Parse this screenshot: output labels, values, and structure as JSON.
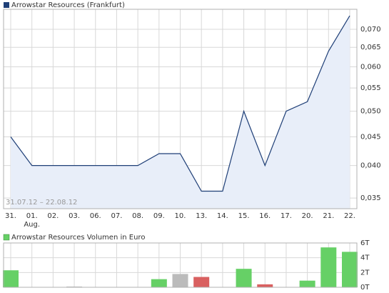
{
  "chart_data": [
    {
      "type": "line",
      "title": "Arrowstar Resources (Frankfurt)",
      "annotation": "31.07.12 – 22.08.12",
      "categories": [
        "31.",
        "01.",
        "02.",
        "03.",
        "06.",
        "07.",
        "08.",
        "09.",
        "10.",
        "13.",
        "14.",
        "15.",
        "16.",
        "17.",
        "20.",
        "21.",
        "22."
      ],
      "sublabels": [
        null,
        "Aug.",
        null,
        null,
        null,
        null,
        null,
        null,
        null,
        null,
        null,
        null,
        null,
        null,
        null,
        null,
        null
      ],
      "values": [
        0.045,
        0.04,
        0.04,
        0.04,
        0.04,
        0.04,
        0.04,
        0.042,
        0.042,
        0.036,
        0.036,
        0.05,
        0.04,
        0.05,
        0.052,
        0.064,
        0.074
      ],
      "color": "#1f3f77",
      "fill_color": "#e8eef9",
      "log_scale": true,
      "grid": true,
      "ylim": [
        0.0335,
        0.076
      ],
      "yticks": [
        {
          "value": 0.035,
          "label": "0,035"
        },
        {
          "value": 0.04,
          "label": "0,040"
        },
        {
          "value": 0.045,
          "label": "0,045"
        },
        {
          "value": 0.05,
          "label": "0,050"
        },
        {
          "value": 0.055,
          "label": "0,055"
        },
        {
          "value": 0.06,
          "label": "0,060"
        },
        {
          "value": 0.065,
          "label": "0,065"
        },
        {
          "value": 0.07,
          "label": "0,070"
        }
      ]
    },
    {
      "type": "bar",
      "title": "Arrowstar Resources Volumen in Euro",
      "legend_color": "#66d066",
      "values": [
        2300,
        null,
        null,
        100,
        null,
        null,
        null,
        1100,
        1800,
        1400,
        null,
        2500,
        400,
        null,
        900,
        5400,
        4800
      ],
      "colors": [
        "#66d066",
        null,
        null,
        "#bbbbbb",
        null,
        null,
        null,
        "#66d066",
        "#bbbbbb",
        "#d96060",
        null,
        "#66d066",
        "#d96060",
        null,
        "#66d066",
        "#66d066",
        "#66d066"
      ],
      "grid": true,
      "ylim": [
        0,
        6000
      ],
      "yticks": [
        {
          "value": 0,
          "label": "0T"
        },
        {
          "value": 2000,
          "label": "2T"
        },
        {
          "value": 4000,
          "label": "4T"
        },
        {
          "value": 6000,
          "label": "6T"
        }
      ]
    }
  ]
}
